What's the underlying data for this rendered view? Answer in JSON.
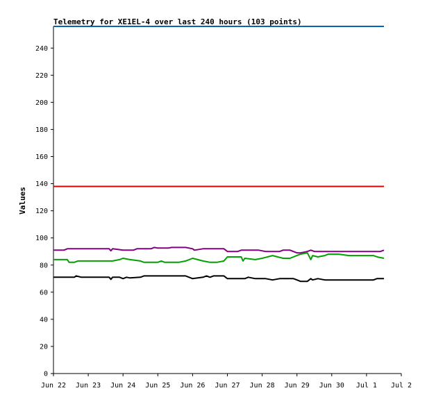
{
  "chart_data": {
    "type": "line",
    "title": "Telemetry for XE1EL-4 over last 240 hours (103 points)",
    "ylabel": "Values",
    "xlabel": "",
    "ylim": [
      0,
      256
    ],
    "yticks": [
      0,
      20,
      40,
      60,
      80,
      100,
      120,
      140,
      160,
      180,
      200,
      220,
      240
    ],
    "xlim": [
      0,
      10
    ],
    "xticks": [
      {
        "x": 0,
        "label": "Jun 22"
      },
      {
        "x": 1,
        "label": "Jun 23"
      },
      {
        "x": 2,
        "label": "Jun 24"
      },
      {
        "x": 3,
        "label": "Jun 25"
      },
      {
        "x": 4,
        "label": "Jun 26"
      },
      {
        "x": 5,
        "label": "Jun 27"
      },
      {
        "x": 6,
        "label": "Jun 28"
      },
      {
        "x": 7,
        "label": "Jun 29"
      },
      {
        "x": 8,
        "label": "Jun 30"
      },
      {
        "x": 9,
        "label": "Jul 1"
      },
      {
        "x": 10,
        "label": "Jul 2"
      }
    ],
    "grid": false,
    "series": [
      {
        "color": "#0066b3",
        "points": [
          [
            0,
            256
          ],
          [
            9.5,
            256
          ]
        ]
      },
      {
        "color": "#e00000",
        "points": [
          [
            0,
            138
          ],
          [
            9.5,
            138
          ]
        ]
      },
      {
        "color": "#800080",
        "points": [
          [
            0,
            91
          ],
          [
            0.3,
            91
          ],
          [
            0.4,
            92
          ],
          [
            1.6,
            92
          ],
          [
            1.65,
            90.5
          ],
          [
            1.7,
            92
          ],
          [
            2.0,
            91
          ],
          [
            2.3,
            91
          ],
          [
            2.4,
            92
          ],
          [
            2.8,
            92
          ],
          [
            2.9,
            93
          ],
          [
            3.0,
            92.5
          ],
          [
            3.3,
            92.5
          ],
          [
            3.4,
            93
          ],
          [
            3.8,
            93
          ],
          [
            4.0,
            92
          ],
          [
            4.05,
            91
          ],
          [
            4.3,
            92
          ],
          [
            4.9,
            92
          ],
          [
            5.0,
            90
          ],
          [
            5.3,
            90
          ],
          [
            5.4,
            91
          ],
          [
            5.9,
            91
          ],
          [
            6.1,
            90
          ],
          [
            6.5,
            90
          ],
          [
            6.6,
            91
          ],
          [
            6.8,
            91
          ],
          [
            7.0,
            89
          ],
          [
            7.1,
            89
          ],
          [
            7.3,
            90
          ],
          [
            7.4,
            91
          ],
          [
            7.5,
            90
          ],
          [
            8.5,
            90
          ],
          [
            9.4,
            90
          ],
          [
            9.5,
            91
          ]
        ]
      },
      {
        "color": "#00a000",
        "points": [
          [
            0,
            84
          ],
          [
            0.4,
            84
          ],
          [
            0.45,
            82
          ],
          [
            0.6,
            82
          ],
          [
            0.7,
            83
          ],
          [
            1.7,
            83
          ],
          [
            1.9,
            84
          ],
          [
            2.0,
            85
          ],
          [
            2.2,
            84
          ],
          [
            2.5,
            83
          ],
          [
            2.6,
            82
          ],
          [
            3.0,
            82
          ],
          [
            3.1,
            83
          ],
          [
            3.2,
            82
          ],
          [
            3.6,
            82
          ],
          [
            3.8,
            83
          ],
          [
            4.0,
            85
          ],
          [
            4.3,
            83
          ],
          [
            4.5,
            82
          ],
          [
            4.7,
            82
          ],
          [
            4.9,
            83
          ],
          [
            5.0,
            86
          ],
          [
            5.4,
            86
          ],
          [
            5.45,
            83
          ],
          [
            5.5,
            85
          ],
          [
            5.8,
            84
          ],
          [
            6.0,
            85
          ],
          [
            6.3,
            87
          ],
          [
            6.6,
            85
          ],
          [
            6.8,
            85
          ],
          [
            7.1,
            88
          ],
          [
            7.3,
            89
          ],
          [
            7.4,
            84
          ],
          [
            7.45,
            87
          ],
          [
            7.6,
            86
          ],
          [
            7.8,
            87
          ],
          [
            7.9,
            88
          ],
          [
            8.2,
            88
          ],
          [
            8.5,
            87
          ],
          [
            9.2,
            87
          ],
          [
            9.3,
            86
          ],
          [
            9.5,
            85
          ]
        ]
      },
      {
        "color": "#000000",
        "points": [
          [
            0,
            71
          ],
          [
            0.6,
            71
          ],
          [
            0.65,
            72
          ],
          [
            0.8,
            71
          ],
          [
            1.6,
            71
          ],
          [
            1.65,
            69.5
          ],
          [
            1.7,
            71
          ],
          [
            1.9,
            71
          ],
          [
            2.0,
            70
          ],
          [
            2.1,
            71
          ],
          [
            2.2,
            70.5
          ],
          [
            2.5,
            71
          ],
          [
            2.6,
            72
          ],
          [
            3.5,
            72
          ],
          [
            3.8,
            72
          ],
          [
            4.0,
            70
          ],
          [
            4.3,
            71
          ],
          [
            4.4,
            72
          ],
          [
            4.5,
            71
          ],
          [
            4.6,
            72
          ],
          [
            4.9,
            72
          ],
          [
            5.0,
            70
          ],
          [
            5.5,
            70
          ],
          [
            5.6,
            71
          ],
          [
            5.8,
            70
          ],
          [
            6.1,
            70
          ],
          [
            6.3,
            69
          ],
          [
            6.5,
            70
          ],
          [
            6.9,
            70
          ],
          [
            7.0,
            69
          ],
          [
            7.1,
            68
          ],
          [
            7.3,
            68
          ],
          [
            7.4,
            70
          ],
          [
            7.45,
            69
          ],
          [
            7.6,
            70
          ],
          [
            7.8,
            69
          ],
          [
            8.0,
            69
          ],
          [
            9.2,
            69
          ],
          [
            9.3,
            70
          ],
          [
            9.5,
            70
          ]
        ]
      }
    ]
  }
}
